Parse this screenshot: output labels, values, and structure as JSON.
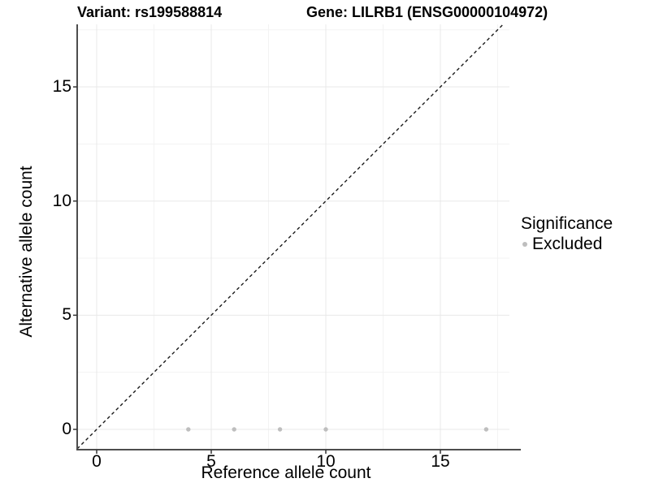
{
  "titles": {
    "variant": "Variant: rs199588814",
    "gene": "Gene: LILRB1 (ENSG00000104972)"
  },
  "chart_data": {
    "type": "scatter",
    "title_left": "Variant: rs199588814",
    "title_right": "Gene: LILRB1 (ENSG00000104972)",
    "xlabel": "Reference allele count",
    "ylabel": "Alternative allele count",
    "x_ticks": [
      0,
      5,
      10,
      15
    ],
    "y_ticks": [
      0,
      5,
      10,
      15
    ],
    "minor_ticks": [
      2.5,
      7.5,
      12.5,
      17.5
    ],
    "xlim": [
      -0.85,
      18.0
    ],
    "ylim": [
      -0.89,
      17.74
    ],
    "grid": "major+minor",
    "series": [
      {
        "name": "Excluded",
        "color": "#bebebe",
        "points": [
          [
            4,
            0
          ],
          [
            6,
            0
          ],
          [
            8,
            0
          ],
          [
            10,
            0
          ],
          [
            17,
            0
          ]
        ]
      }
    ],
    "reference_line": {
      "type": "identity",
      "style": "dashed",
      "color": "#1a1a1a"
    },
    "legend": {
      "title": "Significance",
      "position": "right",
      "items": [
        {
          "label": "Excluded",
          "color": "#bebebe"
        }
      ]
    },
    "colors": {
      "background": "#ffffff",
      "grid_major": "#e8e8e8",
      "grid_minor": "#f3f3f3",
      "axis_line": "#4d4d4d",
      "tick_mark": "#333333",
      "text": "#000000",
      "point": "#bebebe"
    }
  }
}
